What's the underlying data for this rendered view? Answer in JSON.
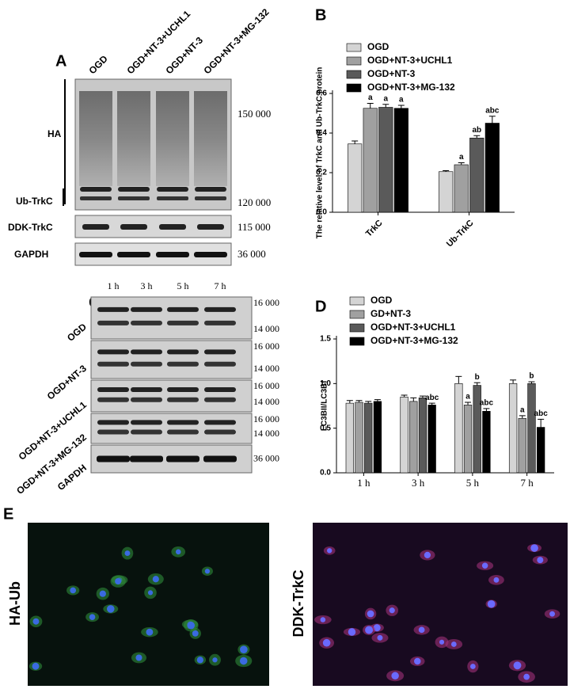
{
  "panel_labels": [
    "A",
    "B",
    "C",
    "D",
    "E"
  ],
  "blot_a": {
    "lanes": [
      "OGD",
      "OGD+NT-3+UCHL1",
      "OGD+NT-3",
      "OGD+NT-3+MG-132"
    ],
    "rows": [
      "HA",
      "Ub-TrkC",
      "DDK-TrkC",
      "GAPDH"
    ],
    "mw": [
      "150 000",
      "120 000",
      "115 000",
      "36 000"
    ]
  },
  "blot_c": {
    "times": [
      "1 h",
      "3 h",
      "5 h",
      "7 h"
    ],
    "rows": [
      "OGD",
      "OGD+NT-3",
      "OGD+NT-3+UCHL1",
      "OGD+NT-3+MG-132",
      "GAPDH"
    ],
    "mw": [
      "16 000",
      "14 000",
      "36 000"
    ]
  },
  "images": {
    "labels": [
      "HA-Ub",
      "DDK-TrkC"
    ]
  },
  "chart_data": [
    {
      "type": "bar",
      "y_label": "The relative level of TrkC and Ub-TrkC protein",
      "categories": [
        "TrkC",
        "Ub-TrkC"
      ],
      "ylim": [
        0,
        0.6
      ],
      "yticks": [
        {
          "value": 0,
          "label": "0.0"
        },
        0.2,
        0.4,
        0.6
      ],
      "grid": false,
      "series": [
        {
          "name": "OGD",
          "color": "#d4d4d4",
          "values": [
            0.345,
            0.205
          ],
          "errors": [
            0.015,
            0.005
          ],
          "labels": [
            null,
            null
          ]
        },
        {
          "name": "OGD+NT-3+UCHL1",
          "color": "#a0a0a0",
          "values": [
            0.525,
            0.24
          ],
          "errors": [
            0.025,
            0.01
          ],
          "labels": [
            "a",
            "a"
          ]
        },
        {
          "name": "OGD+NT-3",
          "color": "#5a5a5a",
          "values": [
            0.53,
            0.375
          ],
          "errors": [
            0.015,
            0.012
          ],
          "labels": [
            "a",
            "ab"
          ]
        },
        {
          "name": "OGD+NT-3+MG-132",
          "color": "#000000",
          "values": [
            0.525,
            0.45
          ],
          "errors": [
            0.015,
            0.035
          ],
          "labels": [
            "a",
            "abc"
          ]
        }
      ]
    },
    {
      "type": "bar",
      "y_label": "LC3BII/LC3BI",
      "categories": [
        "1 h",
        "3 h",
        "5 h",
        "7 h"
      ],
      "ylim": [
        0,
        1.5
      ],
      "yticks": [
        {
          "value": 0,
          "label": "0.0"
        },
        0.5,
        {
          "value": 1,
          "label": "1.0"
        },
        1.5
      ],
      "grid": false,
      "series": [
        {
          "name": "OGD",
          "color": "#d4d4d4",
          "values": [
            0.78,
            0.85,
            1.0,
            1.0
          ],
          "errors": [
            0.03,
            0.02,
            0.08,
            0.04
          ],
          "labels": [
            null,
            null,
            null,
            null
          ]
        },
        {
          "name": "GD+NT-3",
          "color": "#a0a0a0",
          "values": [
            0.79,
            0.8,
            0.76,
            0.61
          ],
          "errors": [
            0.02,
            0.04,
            0.03,
            0.03
          ],
          "labels": [
            null,
            null,
            "a",
            "a"
          ]
        },
        {
          "name": "OGD+NT-3+UCHL1",
          "color": "#5a5a5a",
          "values": [
            0.78,
            0.84,
            0.98,
            1.0
          ],
          "errors": [
            0.02,
            0.02,
            0.03,
            0.02
          ],
          "labels": [
            null,
            null,
            "b",
            "b"
          ]
        },
        {
          "name": "OGD+NT-3+MG-132",
          "color": "#000000",
          "values": [
            0.8,
            0.76,
            0.69,
            0.51
          ],
          "errors": [
            0.02,
            0.02,
            0.03,
            0.09
          ],
          "labels": [
            null,
            "abc",
            "abc",
            "abc"
          ]
        }
      ]
    }
  ]
}
